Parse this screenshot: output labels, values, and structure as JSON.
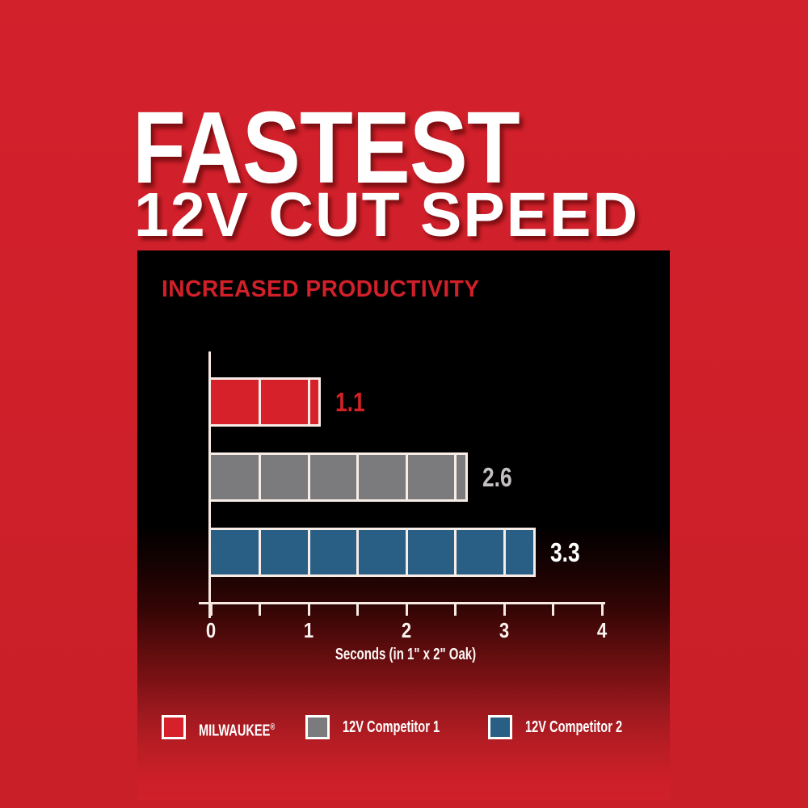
{
  "title": {
    "line1": "FASTEST",
    "line2": "12V CUT SPEED"
  },
  "panel": {
    "heading": "INCREASED PRODUCTIVITY"
  },
  "chart_data": {
    "type": "bar",
    "orientation": "horizontal",
    "title": "INCREASED PRODUCTIVITY",
    "xlabel": "Seconds (in 1\" x 2\" Oak)",
    "xlim": [
      0,
      4
    ],
    "xticks": [
      0,
      1,
      2,
      3,
      4
    ],
    "minor_tick_interval": 0.5,
    "segment_interval": 0.5,
    "grid": false,
    "legend_position": "bottom",
    "categories": [
      "MILWAUKEE®",
      "12V Competitor 1",
      "12V Competitor 2"
    ],
    "series": [
      {
        "name": "MILWAUKEE",
        "reg": "®",
        "value": 1.1,
        "value_label": "1.1",
        "bar_color": "#d6212a",
        "label_color": "#d32127"
      },
      {
        "name": "12V Competitor 1",
        "value": 2.6,
        "value_label": "2.6",
        "bar_color": "#7b7b7e",
        "label_color": "#c4c0c0"
      },
      {
        "name": "12V Competitor 2",
        "value": 3.3,
        "value_label": "3.3",
        "bar_color": "#2a5f85",
        "label_color": "#ffffff"
      }
    ]
  },
  "colors": {
    "background_red": "#d0202a",
    "panel_black": "#000000",
    "axis_white": "#f6e9e2",
    "heading_red": "#d2202a",
    "title_white": "#ffffff"
  }
}
